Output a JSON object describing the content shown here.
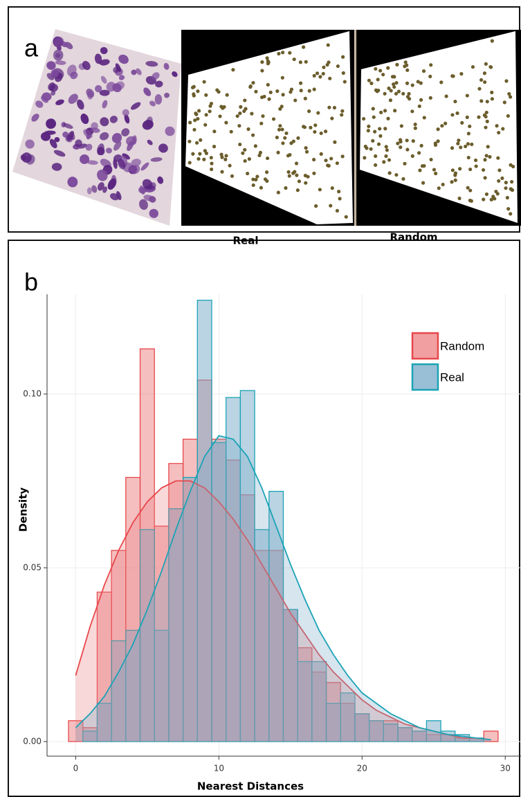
{
  "panel_a": {
    "label": "a",
    "captions": [
      "Real",
      "Random"
    ]
  },
  "panel_b": {
    "label": "b"
  },
  "chart_data": {
    "type": "histogram",
    "xlabel": "Nearest Distances",
    "ylabel": "Density",
    "bins": [
      -0.5,
      0.5,
      1.5,
      2.5,
      3.5,
      4.5,
      5.5,
      6.5,
      7.5,
      8.5,
      9.5,
      10.5,
      11.5,
      12.5,
      13.5,
      14.5,
      15.5,
      16.5,
      17.5,
      18.5,
      19.5,
      20.5,
      21.5,
      22.5,
      23.5,
      24.5,
      25.5,
      26.5,
      27.5,
      28.5,
      29.5
    ],
    "series": [
      {
        "name": "Random",
        "color": "#e8474b",
        "fill": "#ec7f82",
        "values": [
          0.006,
          0.004,
          0.043,
          0.055,
          0.076,
          0.113,
          0.062,
          0.08,
          0.087,
          0.104,
          0.087,
          0.081,
          0.071,
          0.055,
          0.055,
          0.038,
          0.027,
          0.02,
          0.017,
          0.011,
          0.008,
          0.006,
          0.006,
          0.004,
          0.003,
          0.002,
          0.002,
          0.001,
          0.001,
          0.003
        ],
        "density": [
          0.019,
          0.033,
          0.045,
          0.055,
          0.063,
          0.069,
          0.073,
          0.075,
          0.075,
          0.073,
          0.069,
          0.064,
          0.058,
          0.051,
          0.044,
          0.037,
          0.031,
          0.025,
          0.02,
          0.016,
          0.012,
          0.009,
          0.007,
          0.005,
          0.004,
          0.003,
          0.002,
          0.001,
          0.001,
          0.0005
        ]
      },
      {
        "name": "Real",
        "color": "#1aa3b5",
        "fill": "#76a9c8",
        "values": [
          0,
          0.003,
          0.011,
          0.029,
          0.032,
          0.061,
          0.032,
          0.067,
          0.076,
          0.127,
          0.086,
          0.099,
          0.101,
          0.061,
          0.072,
          0.038,
          0.023,
          0.023,
          0.011,
          0.014,
          0.008,
          0.006,
          0.005,
          0.004,
          0.003,
          0.006,
          0.003,
          0.002,
          0.001,
          0
        ],
        "density": [
          0.004,
          0.008,
          0.013,
          0.02,
          0.028,
          0.038,
          0.049,
          0.061,
          0.072,
          0.082,
          0.088,
          0.087,
          0.082,
          0.073,
          0.062,
          0.051,
          0.041,
          0.032,
          0.025,
          0.019,
          0.014,
          0.011,
          0.008,
          0.006,
          0.004,
          0.003,
          0.002,
          0.0015,
          0.001,
          0.0005
        ]
      }
    ],
    "density_x": [
      0,
      1,
      2,
      3,
      4,
      5,
      6,
      7,
      8,
      9,
      10,
      11,
      12,
      13,
      14,
      15,
      16,
      17,
      18,
      19,
      20,
      21,
      22,
      23,
      24,
      25,
      26,
      27,
      28,
      29
    ],
    "xlim": [
      -2,
      31.1
    ],
    "ylim": [
      -0.0042,
      0.1287
    ],
    "xticks": [
      0,
      10,
      20,
      30
    ],
    "yticks": [
      {
        "value": 0,
        "label": "0.00"
      },
      {
        "value": 0.05,
        "label": "0.05"
      },
      {
        "value": 0.1,
        "label": "0.10"
      }
    ],
    "grid": true,
    "legend": "upper right"
  }
}
